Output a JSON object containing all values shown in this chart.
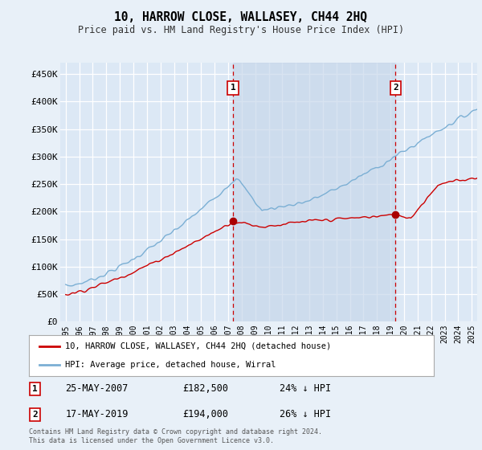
{
  "title": "10, HARROW CLOSE, WALLASEY, CH44 2HQ",
  "subtitle": "Price paid vs. HM Land Registry's House Price Index (HPI)",
  "background_color": "#e8f0f8",
  "plot_bg_color": "#dce8f5",
  "ylim": [
    0,
    470000
  ],
  "yticks": [
    0,
    50000,
    100000,
    150000,
    200000,
    250000,
    300000,
    350000,
    400000,
    450000
  ],
  "ytick_labels": [
    "£0",
    "£50K",
    "£100K",
    "£150K",
    "£200K",
    "£250K",
    "£300K",
    "£350K",
    "£400K",
    "£450K"
  ],
  "legend_house": "10, HARROW CLOSE, WALLASEY, CH44 2HQ (detached house)",
  "legend_hpi": "HPI: Average price, detached house, Wirral",
  "sale1_date": "25-MAY-2007",
  "sale1_price": 182500,
  "sale1_label": "24% ↓ HPI",
  "sale2_date": "17-MAY-2019",
  "sale2_price": 194000,
  "sale2_label": "26% ↓ HPI",
  "footnote": "Contains HM Land Registry data © Crown copyright and database right 2024.\nThis data is licensed under the Open Government Licence v3.0.",
  "house_line_color": "#cc0000",
  "hpi_line_color": "#7bafd4",
  "shade_color": "#c8d8eb",
  "marker_color": "#aa0000",
  "dashed_line_color": "#cc0000",
  "sale1_x": 2007.37,
  "sale2_x": 2019.37
}
